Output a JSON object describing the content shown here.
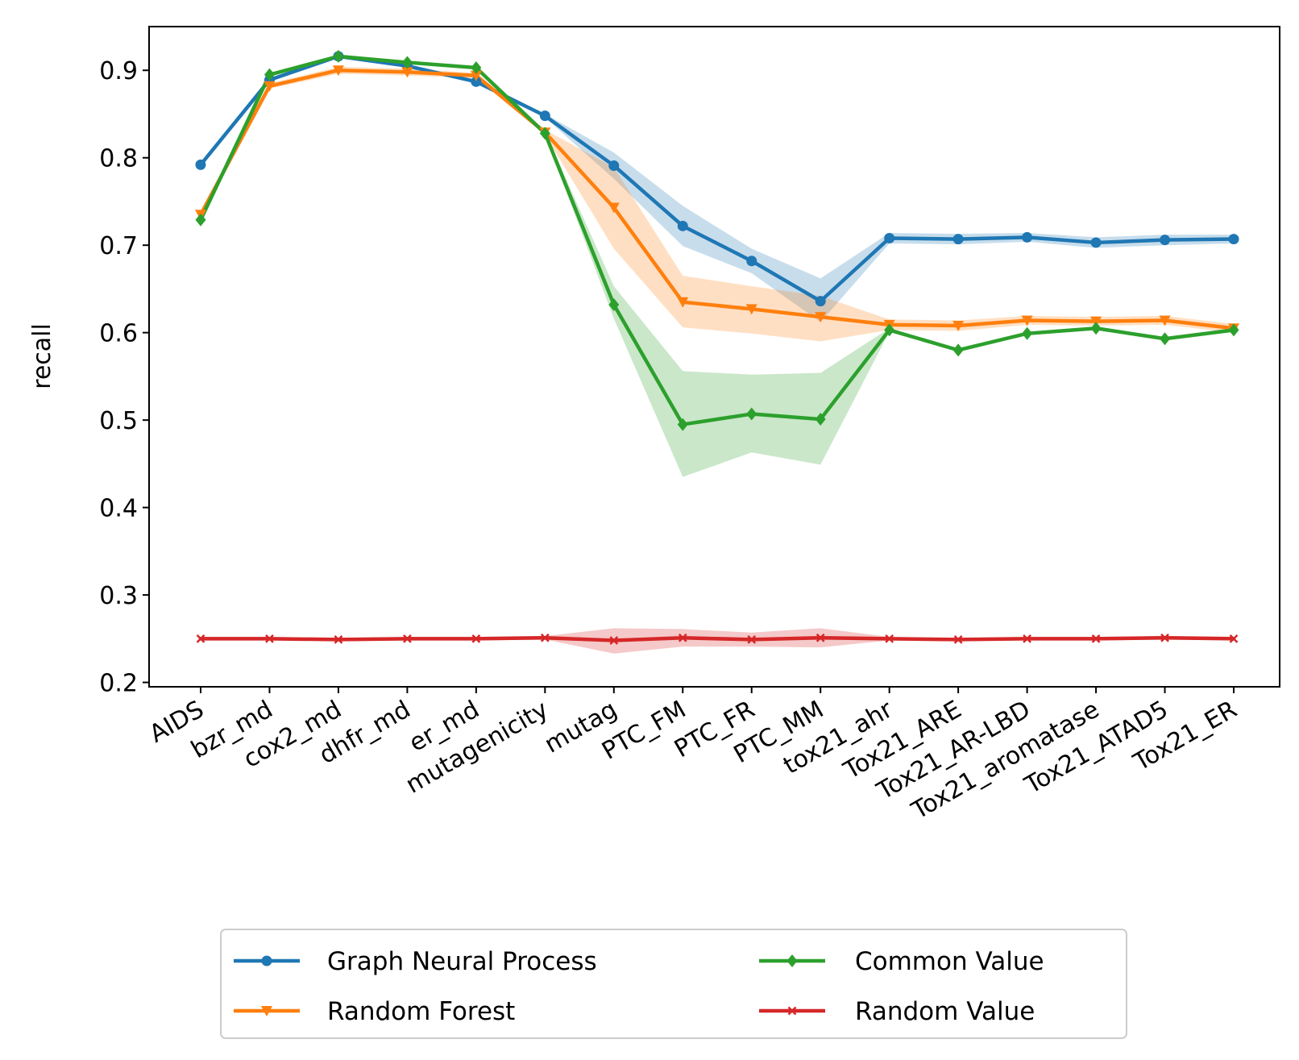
{
  "chart_data": {
    "type": "line",
    "ylabel": "recall",
    "ylim": [
      0.195,
      0.95
    ],
    "yticks": [
      "0.2",
      "0.3",
      "0.4",
      "0.5",
      "0.6",
      "0.7",
      "0.8",
      "0.9"
    ],
    "categories": [
      "AIDS",
      "bzr_md",
      "cox2_md",
      "dhfr_md",
      "er_md",
      "mutagenicity",
      "mutag",
      "PTC_FM",
      "PTC_FR",
      "PTC_MM",
      "tox21_ahr",
      "Tox21_ARE",
      "Tox21_AR-LBD",
      "Tox21_aromatase",
      "Tox21_ATAD5",
      "Tox21_ER"
    ],
    "legend_position": "bottom-center, below plot, 2 columns",
    "grid": false,
    "series": [
      {
        "name": "Graph Neural Process",
        "color": "#1f77b4",
        "marker": "circle",
        "values": [
          0.792,
          0.889,
          0.916,
          0.905,
          0.887,
          0.848,
          0.791,
          0.722,
          0.682,
          0.636,
          0.708,
          0.707,
          0.709,
          0.703,
          0.706,
          0.707
        ],
        "lower": [
          0.792,
          0.887,
          0.914,
          0.903,
          0.885,
          0.846,
          0.776,
          0.699,
          0.668,
          0.612,
          0.702,
          0.701,
          0.704,
          0.697,
          0.7,
          0.702
        ],
        "upper": [
          0.792,
          0.891,
          0.918,
          0.907,
          0.889,
          0.85,
          0.806,
          0.745,
          0.696,
          0.662,
          0.714,
          0.713,
          0.714,
          0.709,
          0.712,
          0.712
        ]
      },
      {
        "name": "Random Forest",
        "color": "#ff7f0e",
        "marker": "triangle-down",
        "values": [
          0.735,
          0.882,
          0.9,
          0.898,
          0.894,
          0.829,
          0.743,
          0.635,
          0.627,
          0.618,
          0.609,
          0.608,
          0.614,
          0.613,
          0.614,
          0.605
        ],
        "lower": [
          0.733,
          0.879,
          0.896,
          0.894,
          0.891,
          0.826,
          0.696,
          0.606,
          0.599,
          0.59,
          0.603,
          0.602,
          0.609,
          0.608,
          0.609,
          0.6
        ],
        "upper": [
          0.737,
          0.885,
          0.904,
          0.902,
          0.897,
          0.832,
          0.789,
          0.665,
          0.653,
          0.642,
          0.615,
          0.614,
          0.619,
          0.618,
          0.619,
          0.61
        ]
      },
      {
        "name": "Common Value",
        "color": "#2ca02c",
        "marker": "diamond",
        "values": [
          0.729,
          0.895,
          0.916,
          0.909,
          0.903,
          0.828,
          0.632,
          0.495,
          0.507,
          0.501,
          0.603,
          0.58,
          0.599,
          0.605,
          0.593,
          0.603
        ],
        "lower": [
          0.729,
          0.894,
          0.915,
          0.908,
          0.902,
          0.826,
          0.616,
          0.435,
          0.463,
          0.449,
          0.601,
          0.578,
          0.597,
          0.603,
          0.591,
          0.601
        ],
        "upper": [
          0.729,
          0.896,
          0.917,
          0.91,
          0.904,
          0.83,
          0.653,
          0.556,
          0.552,
          0.554,
          0.605,
          0.582,
          0.601,
          0.607,
          0.595,
          0.605
        ]
      },
      {
        "name": "Random Value",
        "color": "#d62728",
        "marker": "x",
        "values": [
          0.25,
          0.25,
          0.249,
          0.25,
          0.25,
          0.251,
          0.248,
          0.251,
          0.249,
          0.251,
          0.25,
          0.249,
          0.25,
          0.25,
          0.251,
          0.25
        ],
        "lower": [
          0.248,
          0.248,
          0.247,
          0.248,
          0.248,
          0.249,
          0.233,
          0.241,
          0.241,
          0.24,
          0.248,
          0.247,
          0.248,
          0.248,
          0.249,
          0.248
        ],
        "upper": [
          0.252,
          0.252,
          0.251,
          0.252,
          0.252,
          0.253,
          0.262,
          0.261,
          0.257,
          0.262,
          0.252,
          0.251,
          0.252,
          0.252,
          0.253,
          0.252
        ]
      }
    ]
  }
}
